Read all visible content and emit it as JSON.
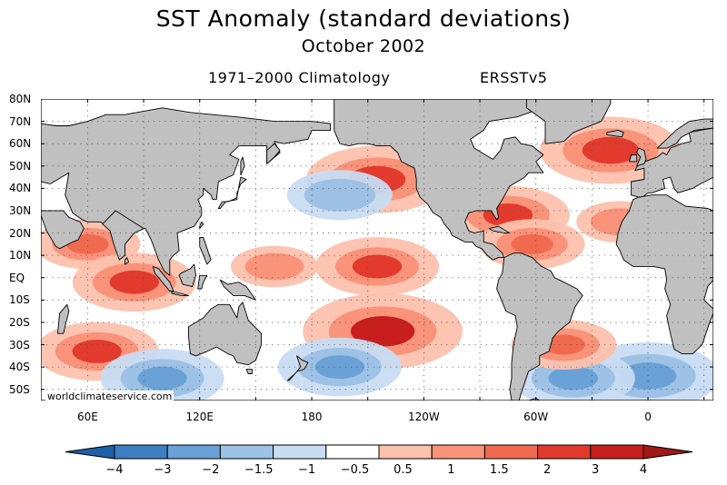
{
  "title": "SST Anomaly (standard deviations)",
  "subtitle": "October 2002",
  "climatology": "1971–2000 Climatology",
  "dataset": "ERSSTv5",
  "credit": "worldclimateservice.com",
  "map": {
    "lat_range": [
      -55,
      80
    ],
    "lon_range": [
      35,
      395
    ],
    "lat_ticks": [
      "80N",
      "70N",
      "60N",
      "50N",
      "40N",
      "30N",
      "20N",
      "10N",
      "EQ",
      "10S",
      "20S",
      "30S",
      "40S",
      "50S"
    ],
    "lon_ticks": [
      "60E",
      "120E",
      "180",
      "120W",
      "60W",
      "0"
    ],
    "land_color": "#c0c0c0",
    "ocean_color": "#ffffff"
  },
  "colorbar": {
    "labels": [
      "−4",
      "−3",
      "−2",
      "−1.5",
      "−1",
      "−0.5",
      "0.5",
      "1",
      "1.5",
      "2",
      "3",
      "4"
    ],
    "colors": [
      "#1f5fa8",
      "#3d7fc0",
      "#6aa1d6",
      "#9dc2e6",
      "#c8dcf2",
      "#ffffff",
      "#fcc1ad",
      "#f9937a",
      "#f06a50",
      "#e23b2e",
      "#c81e1e",
      "#a01818"
    ]
  },
  "chart_data": {
    "type": "heatmap",
    "title": "SST Anomaly (standard deviations)",
    "subtitle": "October 2002",
    "climatology": "1971–2000 Climatology",
    "dataset": "ERSSTv5",
    "units": "standard deviations",
    "levels": [
      -4,
      -3,
      -2,
      -1.5,
      -1,
      -0.5,
      0.5,
      1,
      1.5,
      2,
      3,
      4
    ],
    "anomalies": [
      {
        "lon": 60,
        "lat": 15,
        "value": 1.5
      },
      {
        "lon": 85,
        "lat": -2,
        "value": 2
      },
      {
        "lon": 65,
        "lat": -33,
        "value": 2
      },
      {
        "lon": 100,
        "lat": -45,
        "value": -2
      },
      {
        "lon": 160,
        "lat": 5,
        "value": 1
      },
      {
        "lon": 215,
        "lat": 44,
        "value": 2.5
      },
      {
        "lon": 195,
        "lat": 37,
        "value": -1.5
      },
      {
        "lon": 215,
        "lat": 5,
        "value": 2
      },
      {
        "lon": 218,
        "lat": -24,
        "value": 3
      },
      {
        "lon": 195,
        "lat": -40,
        "value": -2
      },
      {
        "lon": 285,
        "lat": 28,
        "value": 2
      },
      {
        "lon": 298,
        "lat": 15,
        "value": 1.5
      },
      {
        "lon": 340,
        "lat": 57,
        "value": 2.5
      },
      {
        "lon": 345,
        "lat": 25,
        "value": 1
      },
      {
        "lon": 360,
        "lat": -44,
        "value": -2.5
      },
      {
        "lon": 320,
        "lat": -45,
        "value": -2
      },
      {
        "lon": 315,
        "lat": -30,
        "value": 1.5
      }
    ]
  }
}
